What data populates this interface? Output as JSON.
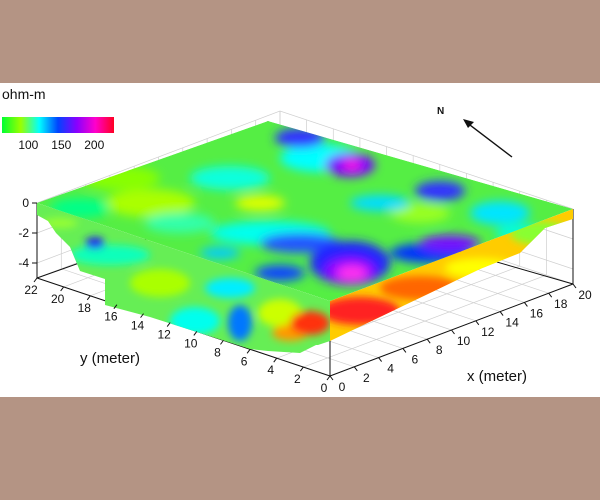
{
  "chart_data": {
    "type": "3d-surface",
    "title": "",
    "colorbar": {
      "label": "ohm-m",
      "colors": [
        "#00ff33",
        "#99ff00",
        "#00ffff",
        "#0044ff",
        "#8800ff",
        "#ff00cc",
        "#ff0022"
      ],
      "ticks": [
        100,
        150,
        200
      ],
      "range": [
        60,
        230
      ]
    },
    "xaxis": {
      "label": "x (meter)",
      "ticks": [
        0,
        2,
        4,
        6,
        8,
        10,
        12,
        14,
        16,
        18,
        20
      ],
      "range": [
        0,
        20
      ]
    },
    "yaxis": {
      "label": "y (meter)",
      "ticks": [
        0,
        2,
        4,
        6,
        8,
        10,
        12,
        14,
        16,
        18,
        20,
        22
      ],
      "range": [
        0,
        22
      ]
    },
    "zaxis": {
      "label": "",
      "ticks": [
        0,
        -2,
        -4
      ],
      "range": [
        -5,
        0
      ]
    },
    "north_label": "N",
    "grid": true
  }
}
